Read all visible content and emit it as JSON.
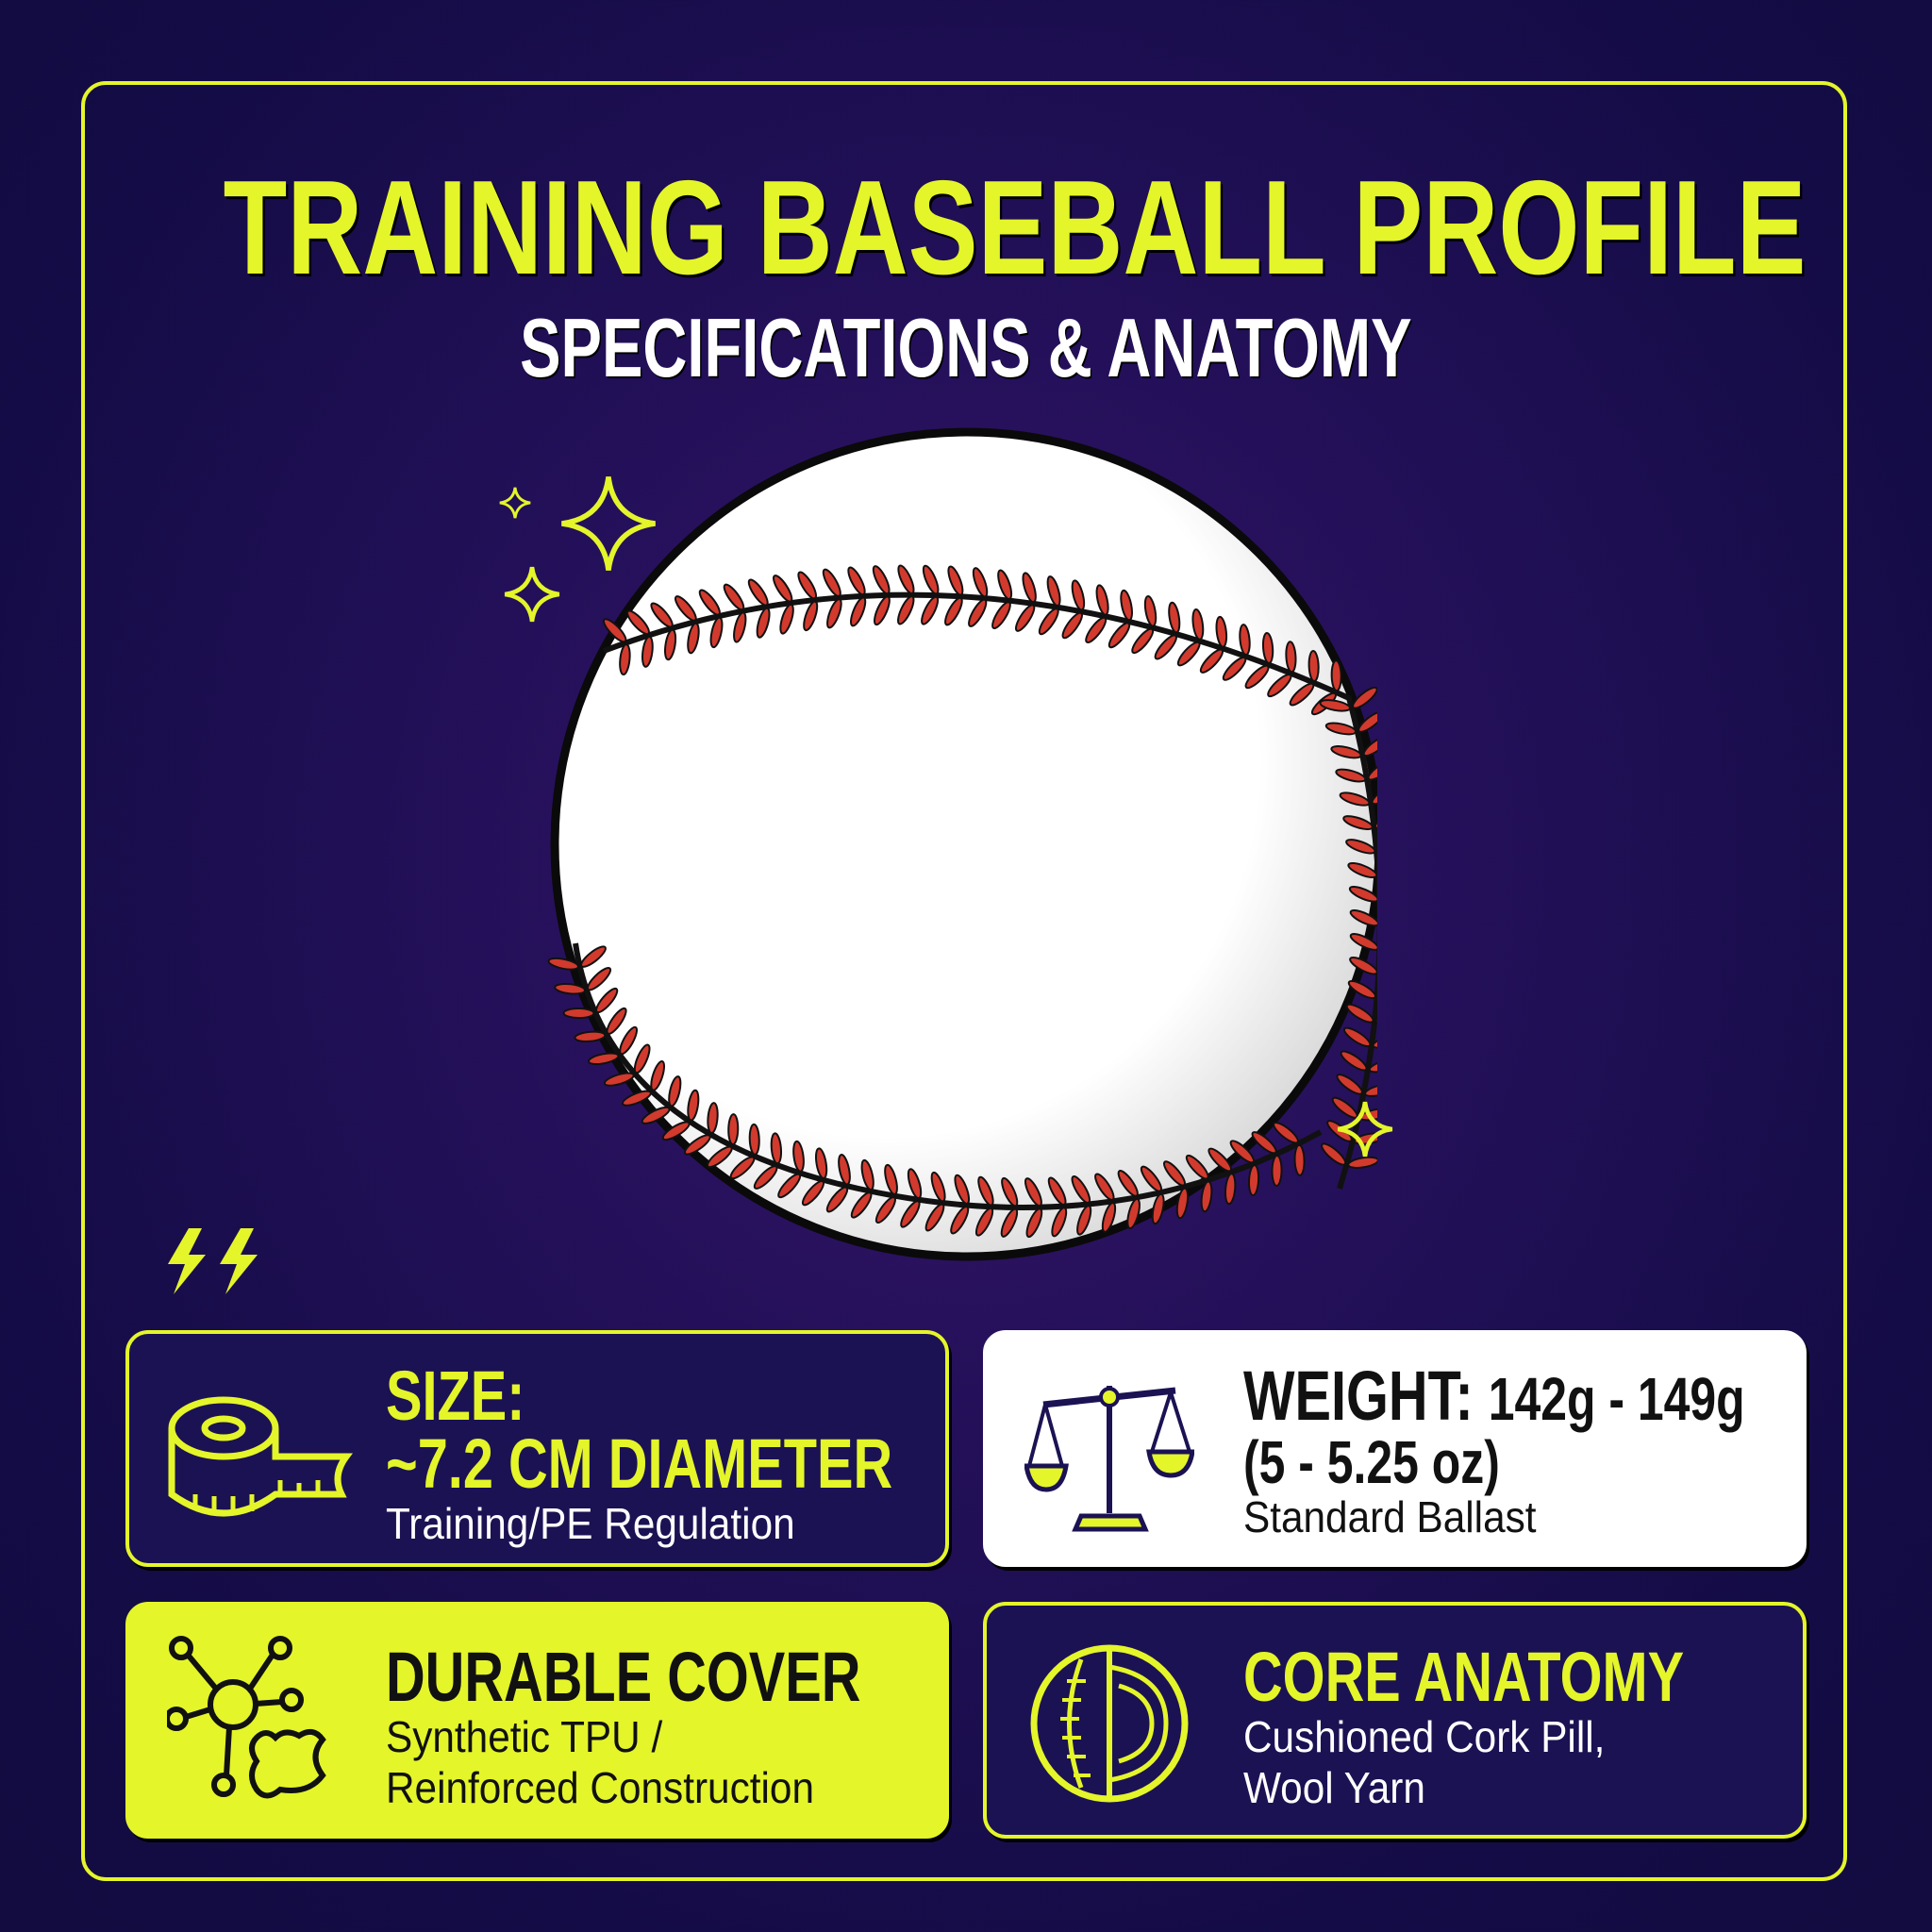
{
  "header": {
    "title": "TRAINING BASEBALL PROFILE",
    "subtitle": "SPECIFICATIONS & ANATOMY"
  },
  "colors": {
    "accent": "#e4f52a",
    "background": "#140c46",
    "stitch": "#d23a2e",
    "card_dark": "#1b1253"
  },
  "cards": [
    {
      "icon": "tape-measure-icon",
      "heading_1": "SIZE:",
      "heading_2": "~7.2 CM DIAMETER",
      "detail": "Training/PE Regulation"
    },
    {
      "icon": "balance-scale-icon",
      "heading_1": "WEIGHT:",
      "heading_1b": "142g - 149g",
      "heading_2": "(5 - 5.25 oz)",
      "detail": "Standard Ballast"
    },
    {
      "icon": "molecule-leather-icon",
      "heading_1": "DURABLE COVER",
      "detail_1": "Synthetic TPU /",
      "detail_2": "Reinforced Construction"
    },
    {
      "icon": "ball-cross-section-icon",
      "heading_1": "CORE ANATOMY",
      "detail_1": "Cushioned Cork Pill,",
      "detail_2": "Wool Yarn"
    }
  ]
}
